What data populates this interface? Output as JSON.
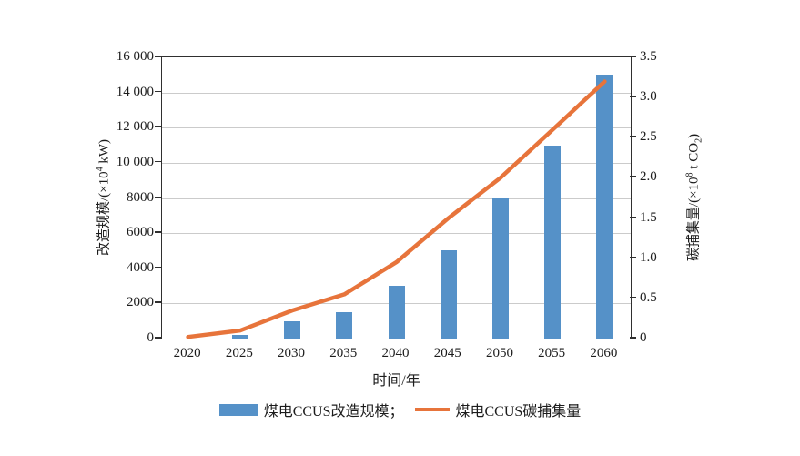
{
  "chart_data": {
    "type": "bar+line dual-axis",
    "categories": [
      "2020",
      "2025",
      "2030",
      "2035",
      "2040",
      "2045",
      "2050",
      "2055",
      "2060"
    ],
    "series": [
      {
        "name": "煤电CCUS改造规模",
        "type": "bar",
        "axis": "left",
        "color": "#5591c8",
        "values": [
          0,
          200,
          1000,
          1500,
          3000,
          5000,
          8000,
          11000,
          15000
        ]
      },
      {
        "name": "煤电CCUS碳捕集量",
        "type": "line",
        "axis": "right",
        "color": "#e7743b",
        "values": [
          0.02,
          0.1,
          0.35,
          0.55,
          0.95,
          1.5,
          2.0,
          2.6,
          3.2
        ]
      }
    ],
    "left_axis": {
      "label": "改造规模/(×10⁴ kW)",
      "label_prefix": "改造规模/(×10",
      "label_sup": "4",
      "label_suffix": " kW)",
      "min": 0,
      "max": 16000,
      "ticks_bottom_up": [
        "0",
        "2000",
        "4000",
        "6000",
        "8000",
        "10 000",
        "12 000",
        "14 000",
        "16 000"
      ]
    },
    "right_axis": {
      "label": "碳捕集量/(×10⁸ t CO₂)",
      "label_prefix": "碳捕集量/(×10",
      "label_sup": "8",
      "label_mid": " t CO",
      "label_sub": "2",
      "label_suffix": ")",
      "min": 0,
      "max": 3.5,
      "ticks_bottom_up": [
        "0",
        "0.5",
        "1.0",
        "1.5",
        "2.0",
        "2.5",
        "3.0",
        "3.5"
      ]
    },
    "x_axis": {
      "label": "时间/年"
    },
    "grid": "horizontal gridlines at left-axis ticks",
    "legend_position": "bottom-center",
    "legend": [
      {
        "label": "煤电CCUS改造规模；",
        "swatch": "bar"
      },
      {
        "label": "煤电CCUS碳捕集量",
        "swatch": "line"
      }
    ]
  },
  "colors": {
    "bar": "#5591c8",
    "line": "#e7743b",
    "frame": "#2f2f2f",
    "gridline": "#cbcbcb",
    "text": "#1c1c1c",
    "background": "#ffffff"
  }
}
